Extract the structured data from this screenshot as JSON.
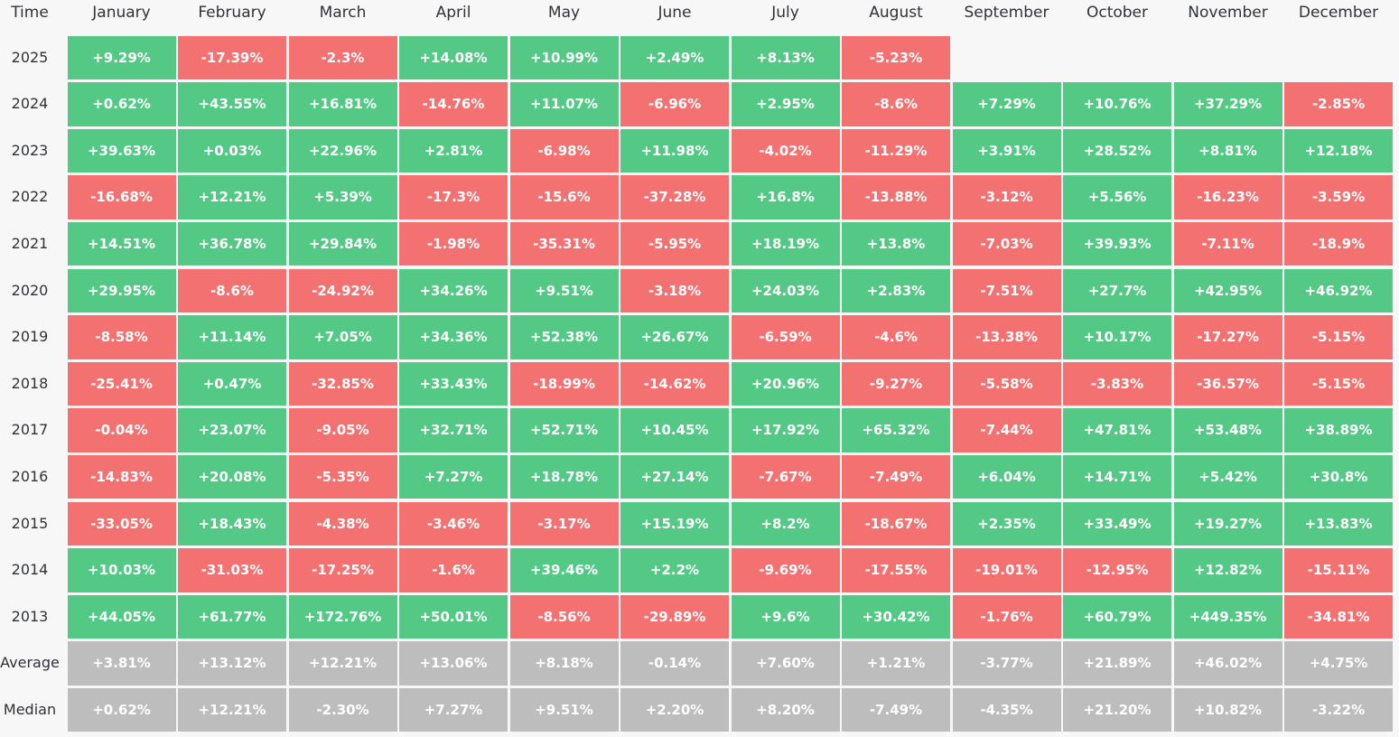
{
  "chart_data": {
    "type": "heatmap",
    "corner_label": "Time",
    "columns": [
      "January",
      "February",
      "March",
      "April",
      "May",
      "June",
      "July",
      "August",
      "September",
      "October",
      "November",
      "December"
    ],
    "rows": [
      {
        "label": "2025",
        "values": [
          "+9.29%",
          "-17.39%",
          "-2.3%",
          "+14.08%",
          "+10.99%",
          "+2.49%",
          "+8.13%",
          "-5.23%",
          null,
          null,
          null,
          null
        ]
      },
      {
        "label": "2024",
        "values": [
          "+0.62%",
          "+43.55%",
          "+16.81%",
          "-14.76%",
          "+11.07%",
          "-6.96%",
          "+2.95%",
          "-8.6%",
          "+7.29%",
          "+10.76%",
          "+37.29%",
          "-2.85%"
        ]
      },
      {
        "label": "2023",
        "values": [
          "+39.63%",
          "+0.03%",
          "+22.96%",
          "+2.81%",
          "-6.98%",
          "+11.98%",
          "-4.02%",
          "-11.29%",
          "+3.91%",
          "+28.52%",
          "+8.81%",
          "+12.18%"
        ]
      },
      {
        "label": "2022",
        "values": [
          "-16.68%",
          "+12.21%",
          "+5.39%",
          "-17.3%",
          "-15.6%",
          "-37.28%",
          "+16.8%",
          "-13.88%",
          "-3.12%",
          "+5.56%",
          "-16.23%",
          "-3.59%"
        ]
      },
      {
        "label": "2021",
        "values": [
          "+14.51%",
          "+36.78%",
          "+29.84%",
          "-1.98%",
          "-35.31%",
          "-5.95%",
          "+18.19%",
          "+13.8%",
          "-7.03%",
          "+39.93%",
          "-7.11%",
          "-18.9%"
        ]
      },
      {
        "label": "2020",
        "values": [
          "+29.95%",
          "-8.6%",
          "-24.92%",
          "+34.26%",
          "+9.51%",
          "-3.18%",
          "+24.03%",
          "+2.83%",
          "-7.51%",
          "+27.7%",
          "+42.95%",
          "+46.92%"
        ]
      },
      {
        "label": "2019",
        "values": [
          "-8.58%",
          "+11.14%",
          "+7.05%",
          "+34.36%",
          "+52.38%",
          "+26.67%",
          "-6.59%",
          "-4.6%",
          "-13.38%",
          "+10.17%",
          "-17.27%",
          "-5.15%"
        ]
      },
      {
        "label": "2018",
        "values": [
          "-25.41%",
          "+0.47%",
          "-32.85%",
          "+33.43%",
          "-18.99%",
          "-14.62%",
          "+20.96%",
          "-9.27%",
          "-5.58%",
          "-3.83%",
          "-36.57%",
          "-5.15%"
        ]
      },
      {
        "label": "2017",
        "values": [
          "-0.04%",
          "+23.07%",
          "-9.05%",
          "+32.71%",
          "+52.71%",
          "+10.45%",
          "+17.92%",
          "+65.32%",
          "-7.44%",
          "+47.81%",
          "+53.48%",
          "+38.89%"
        ]
      },
      {
        "label": "2016",
        "values": [
          "-14.83%",
          "+20.08%",
          "-5.35%",
          "+7.27%",
          "+18.78%",
          "+27.14%",
          "-7.67%",
          "-7.49%",
          "+6.04%",
          "+14.71%",
          "+5.42%",
          "+30.8%"
        ]
      },
      {
        "label": "2015",
        "values": [
          "-33.05%",
          "+18.43%",
          "-4.38%",
          "-3.46%",
          "-3.17%",
          "+15.19%",
          "+8.2%",
          "-18.67%",
          "+2.35%",
          "+33.49%",
          "+19.27%",
          "+13.83%"
        ]
      },
      {
        "label": "2014",
        "values": [
          "+10.03%",
          "-31.03%",
          "-17.25%",
          "-1.6%",
          "+39.46%",
          "+2.2%",
          "-9.69%",
          "-17.55%",
          "-19.01%",
          "-12.95%",
          "+12.82%",
          "-15.11%"
        ]
      },
      {
        "label": "2013",
        "values": [
          "+44.05%",
          "+61.77%",
          "+172.76%",
          "+50.01%",
          "-8.56%",
          "-29.89%",
          "+9.6%",
          "+30.42%",
          "-1.76%",
          "+60.79%",
          "+449.35%",
          "-34.81%"
        ]
      }
    ],
    "summary_rows": [
      {
        "label": "Average",
        "values": [
          "+3.81%",
          "+13.12%",
          "+12.21%",
          "+13.06%",
          "+8.18%",
          "-0.14%",
          "+7.60%",
          "+1.21%",
          "-3.77%",
          "+21.89%",
          "+46.02%",
          "+4.75%"
        ]
      },
      {
        "label": "Median",
        "values": [
          "+0.62%",
          "+12.21%",
          "-2.30%",
          "+7.27%",
          "+9.51%",
          "+2.20%",
          "+8.20%",
          "-7.49%",
          "-4.35%",
          "+21.20%",
          "+10.82%",
          "-3.22%"
        ]
      }
    ],
    "colors": {
      "positive": "#54c986",
      "negative": "#f47171",
      "summary": "#bdbdbd",
      "text": "#ffffff",
      "label": "#2f3237"
    }
  }
}
